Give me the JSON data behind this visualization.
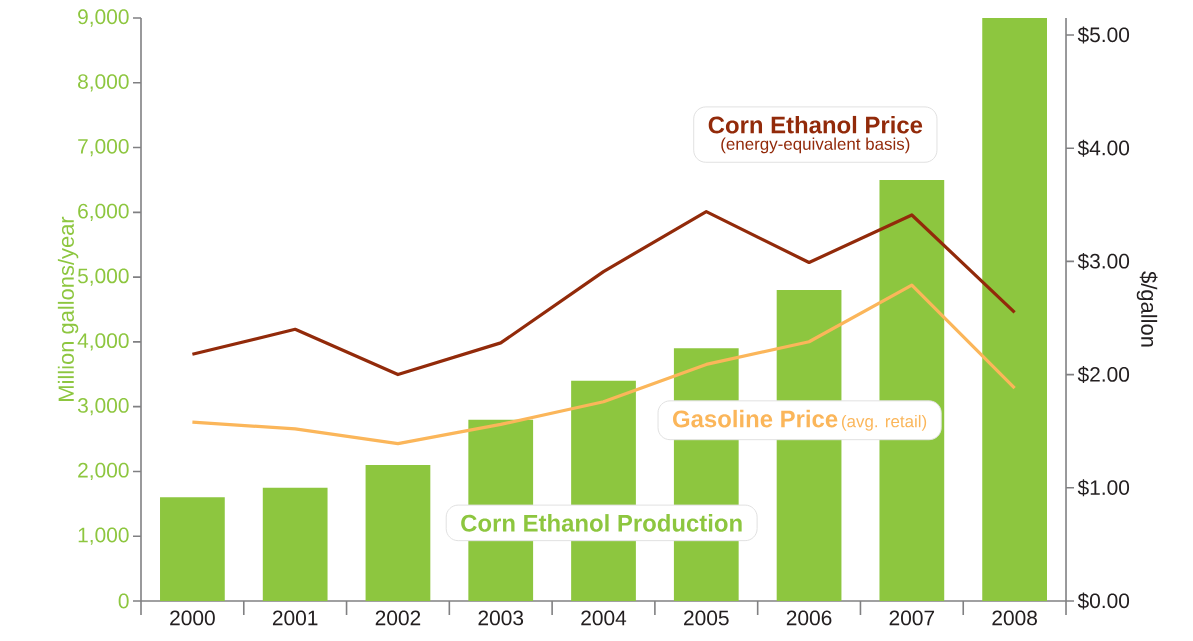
{
  "chart_data": {
    "type": "bar",
    "categories": [
      "2000",
      "2001",
      "2002",
      "2003",
      "2004",
      "2005",
      "2006",
      "2007",
      "2008"
    ],
    "series": [
      {
        "name": "Corn Ethanol Production",
        "color": "#8dc63f",
        "values": [
          1600,
          1750,
          2100,
          2800,
          3400,
          3900,
          4800,
          6500,
          9000
        ]
      },
      {
        "name": "Corn Ethanol Price",
        "type": "line",
        "axis": "y2",
        "color": "#922a0a",
        "values": [
          2.18,
          2.4,
          2.0,
          2.28,
          2.91,
          3.44,
          2.99,
          3.41,
          2.55
        ]
      },
      {
        "name": "Gasoline Price",
        "type": "line",
        "axis": "y2",
        "color": "#fbb65a",
        "values": [
          1.58,
          1.52,
          1.39,
          1.56,
          1.76,
          2.09,
          2.29,
          2.79,
          1.88
        ]
      }
    ],
    "annotations": [
      "(energy-equivalent basis)",
      "(avg. retail)"
    ],
    "ylabel": "Million gallons/year",
    "y2label": "$/gallon",
    "ylim": [
      0,
      9000
    ],
    "yticks": [
      0,
      {
        "value": 1000,
        "label": "1,000"
      },
      {
        "value": 2000,
        "label": "2,000"
      },
      {
        "value": 3000,
        "label": "3,000"
      },
      {
        "value": 4000,
        "label": "4,000"
      },
      {
        "value": 5000,
        "label": "5,000"
      },
      {
        "value": 6000,
        "label": "6,000"
      },
      {
        "value": 7000,
        "label": "7,000"
      },
      {
        "value": 8000,
        "label": "8,000"
      },
      {
        "value": 9000,
        "label": "9,000"
      }
    ],
    "y2lim": [
      0,
      5.15
    ],
    "y2ticks": [
      {
        "value": 0,
        "label": "$0.00"
      },
      {
        "value": 1,
        "label": "$1.00"
      },
      {
        "value": 2,
        "label": "$2.00"
      },
      {
        "value": 3,
        "label": "$3.00"
      },
      {
        "value": 4,
        "label": "$4.00"
      },
      {
        "value": 5,
        "label": "$5.00"
      }
    ]
  }
}
